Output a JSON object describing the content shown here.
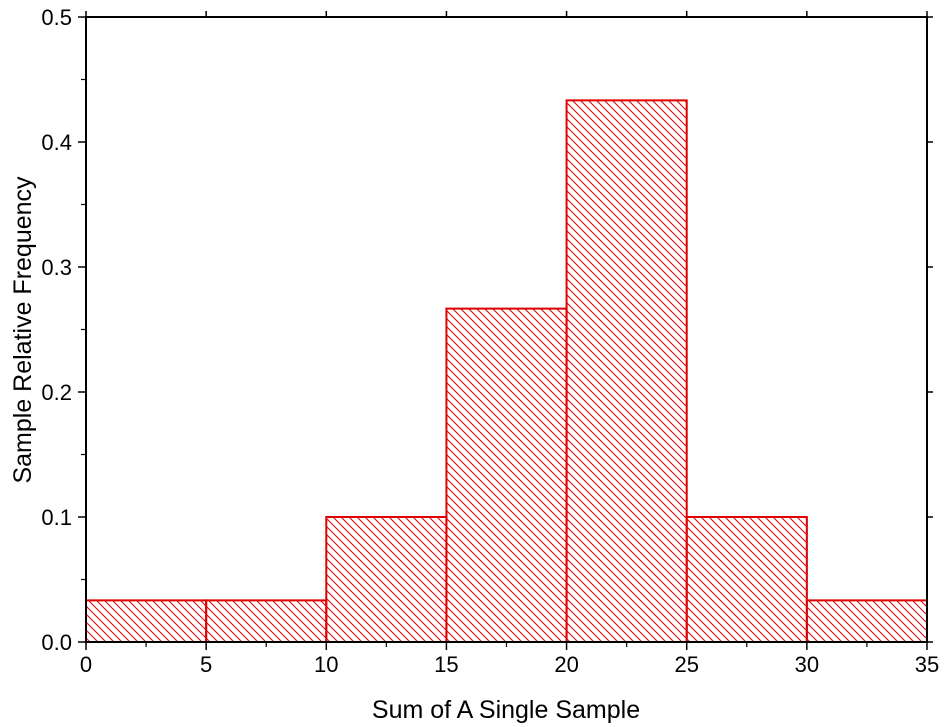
{
  "chart_data": {
    "type": "bar",
    "title": "",
    "xlabel": "Sum of A  Single Sample",
    "ylabel": "Sample Relative Frequency",
    "bins": [
      {
        "start": 0,
        "end": 5,
        "value": 0.0333
      },
      {
        "start": 5,
        "end": 10,
        "value": 0.0333
      },
      {
        "start": 10,
        "end": 15,
        "value": 0.1
      },
      {
        "start": 15,
        "end": 20,
        "value": 0.2667
      },
      {
        "start": 20,
        "end": 25,
        "value": 0.4333
      },
      {
        "start": 25,
        "end": 30,
        "value": 0.1
      },
      {
        "start": 30,
        "end": 35,
        "value": 0.0333
      }
    ],
    "xlim": [
      0,
      35
    ],
    "ylim": [
      0,
      0.5
    ],
    "xticks": [
      "0",
      "5",
      "10",
      "15",
      "20",
      "25",
      "30",
      "35"
    ],
    "yticks": [
      "0.0",
      "0.1",
      "0.2",
      "0.3",
      "0.4",
      "0.5"
    ],
    "grid": false,
    "legend": "none",
    "bar_edge_color": "#e00000",
    "bar_hatch_color": "#e00000",
    "bar_fill": "hatched-diagonal"
  }
}
